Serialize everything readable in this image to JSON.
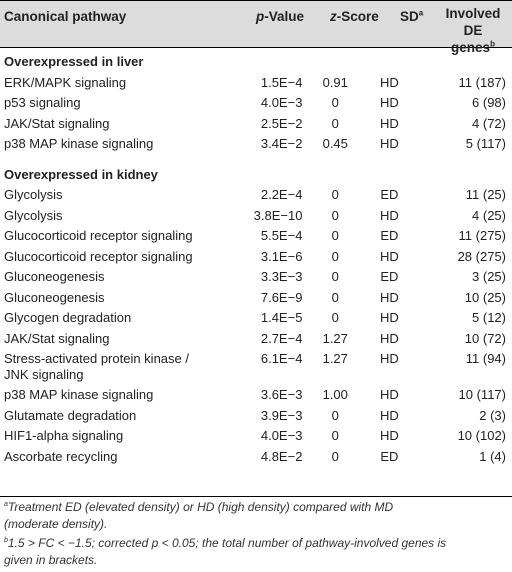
{
  "header": {
    "col1": "Canonical pathway",
    "col2_italic": "p",
    "col2_rest": "-Value",
    "col3_italic": "z",
    "col3_rest": "-Score",
    "col4": "SD",
    "col4_sup": "a",
    "col5_line1": "Involved",
    "col5_line2": "DE genes",
    "col5_sup": "b"
  },
  "sections": [
    {
      "title": "Overexpressed in liver",
      "rows": [
        {
          "pathway": "ERK/MAPK signaling",
          "p": "1.5E−4",
          "z": "0.91",
          "sd": "HD",
          "genes": "11 (187)"
        },
        {
          "pathway": "p53 signaling",
          "p": "4.0E−3",
          "z": "0",
          "sd": "HD",
          "genes": "6 (98)"
        },
        {
          "pathway": "JAK/Stat signaling",
          "p": "2.5E−2",
          "z": "0",
          "sd": "HD",
          "genes": "4 (72)"
        },
        {
          "pathway": "p38 MAP kinase signaling",
          "p": "3.4E−2",
          "z": "0.45",
          "sd": "HD",
          "genes": "5 (117)"
        }
      ]
    },
    {
      "title": "Overexpressed in kidney",
      "rows": [
        {
          "pathway": "Glycolysis",
          "p": "2.2E−4",
          "z": "0",
          "sd": "ED",
          "genes": "11 (25)"
        },
        {
          "pathway": "Glycolysis",
          "p": "3.8E−10",
          "z": "0",
          "sd": "HD",
          "genes": "4 (25)"
        },
        {
          "pathway": "Glucocorticoid receptor signaling",
          "p": "5.5E−4",
          "z": "0",
          "sd": "ED",
          "genes": "11 (275)"
        },
        {
          "pathway": "Glucocorticoid receptor signaling",
          "p": "3.1E−6",
          "z": "0",
          "sd": "HD",
          "genes": "28 (275)"
        },
        {
          "pathway": "Gluconeogenesis",
          "p": "3.3E−3",
          "z": "0",
          "sd": "ED",
          "genes": "3 (25)"
        },
        {
          "pathway": "Gluconeogenesis",
          "p": "7.6E−9",
          "z": "0",
          "sd": "HD",
          "genes": "10 (25)"
        },
        {
          "pathway": "Glycogen degradation",
          "p": "1.4E−5",
          "z": "0",
          "sd": "HD",
          "genes": "5 (12)"
        },
        {
          "pathway": "JAK/Stat signaling",
          "p": "2.7E−4",
          "z": "1.27",
          "sd": "HD",
          "genes": "10 (72)"
        },
        {
          "pathway": "Stress-activated protein kinase /",
          "pathway_line2": "JNK signaling",
          "p": "6.1E−4",
          "z": "1.27",
          "sd": "HD",
          "genes": "11 (94)"
        },
        {
          "pathway": "p38 MAP kinase signaling",
          "p": "3.6E−3",
          "z": "1.00",
          "sd": "HD",
          "genes": "10 (117)"
        },
        {
          "pathway": "Glutamate degradation",
          "p": "3.9E−3",
          "z": "0",
          "sd": "HD",
          "genes": "2 (3)"
        },
        {
          "pathway": "HIF1-alpha signaling",
          "p": "4.0E−3",
          "z": "0",
          "sd": "HD",
          "genes": "10 (102)"
        },
        {
          "pathway": "Ascorbate recycling",
          "p": "4.8E−2",
          "z": "0",
          "sd": "ED",
          "genes": "1 (4)"
        }
      ]
    }
  ],
  "footnotes": [
    {
      "sup": "a",
      "line1": "Treatment ED (elevated density) or HD (high density) compared with MD",
      "line2": "(moderate density)."
    },
    {
      "sup": "b",
      "line1": "1.5 > FC < −1.5; corrected p < 0.05; the total number of pathway-involved genes is",
      "line2": "given in brackets."
    }
  ]
}
